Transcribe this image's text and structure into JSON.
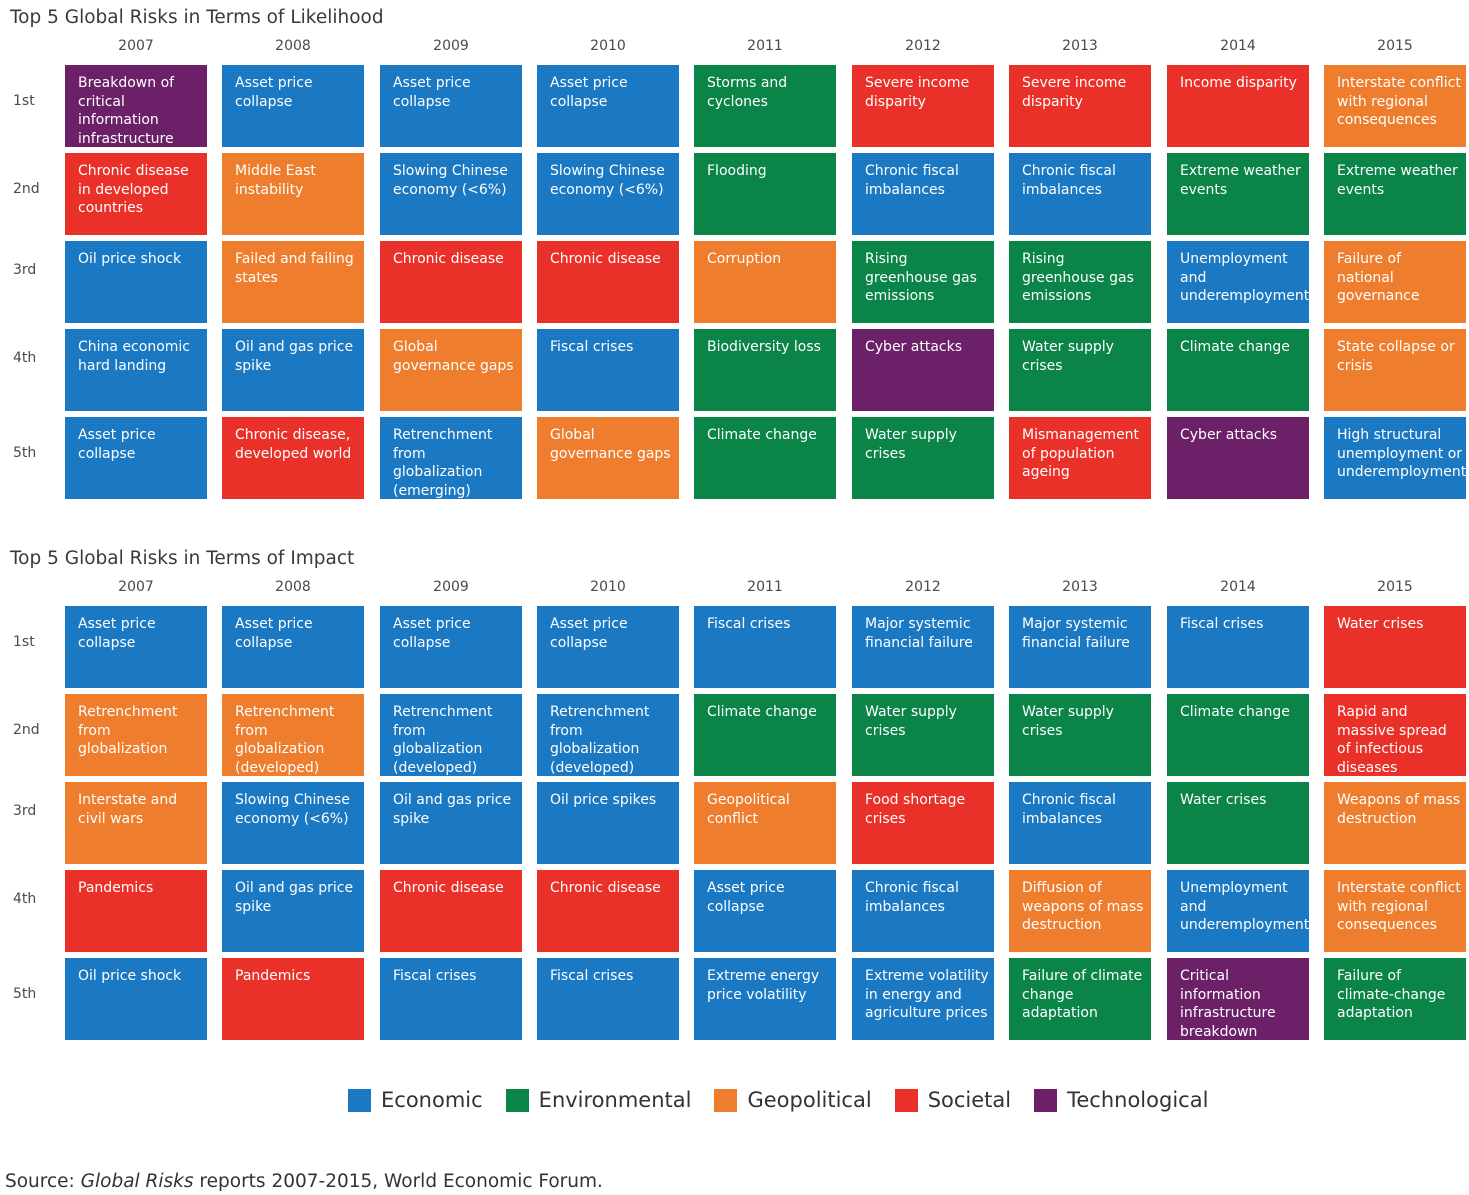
{
  "colors": {
    "Economic": "#1b79c4",
    "Environmental": "#0a8447",
    "Geopolitical": "#ee7d2e",
    "Societal": "#ea3129",
    "Technological": "#6c2068"
  },
  "years": [
    "2007",
    "2008",
    "2009",
    "2010",
    "2011",
    "2012",
    "2013",
    "2014",
    "2015"
  ],
  "ranks": [
    "1st",
    "2nd",
    "3rd",
    "4th",
    "5th"
  ],
  "panels": [
    {
      "title": "Top 5 Global Risks in Terms of Likelihood",
      "columns": [
        [
          {
            "text": "Breakdown of critical information infrastructure",
            "cat": "Technological"
          },
          {
            "text": "Chronic disease in developed countries",
            "cat": "Societal"
          },
          {
            "text": "Oil price shock",
            "cat": "Economic"
          },
          {
            "text": "China economic hard landing",
            "cat": "Economic"
          },
          {
            "text": "Asset price collapse",
            "cat": "Economic"
          }
        ],
        [
          {
            "text": "Asset price collapse",
            "cat": "Economic"
          },
          {
            "text": "Middle East instability",
            "cat": "Geopolitical"
          },
          {
            "text": "Failed and failing states",
            "cat": "Geopolitical"
          },
          {
            "text": "Oil and gas price spike",
            "cat": "Economic"
          },
          {
            "text": "Chronic disease, developed world",
            "cat": "Societal"
          }
        ],
        [
          {
            "text": "Asset price collapse",
            "cat": "Economic"
          },
          {
            "text": "Slowing Chinese economy (<6%)",
            "cat": "Economic"
          },
          {
            "text": "Chronic disease",
            "cat": "Societal"
          },
          {
            "text": "Global governance gaps",
            "cat": "Geopolitical"
          },
          {
            "text": "Retrenchment from globalization (emerging)",
            "cat": "Economic"
          }
        ],
        [
          {
            "text": "Asset price collapse",
            "cat": "Economic"
          },
          {
            "text": "Slowing Chinese economy (<6%)",
            "cat": "Economic"
          },
          {
            "text": "Chronic disease",
            "cat": "Societal"
          },
          {
            "text": "Fiscal crises",
            "cat": "Economic"
          },
          {
            "text": "Global governance gaps",
            "cat": "Geopolitical"
          }
        ],
        [
          {
            "text": "Storms and cyclones",
            "cat": "Environmental"
          },
          {
            "text": "Flooding",
            "cat": "Environmental"
          },
          {
            "text": "Corruption",
            "cat": "Geopolitical"
          },
          {
            "text": "Biodiversity loss",
            "cat": "Environmental"
          },
          {
            "text": "Climate change",
            "cat": "Environmental"
          }
        ],
        [
          {
            "text": "Severe income disparity",
            "cat": "Societal"
          },
          {
            "text": "Chronic fiscal imbalances",
            "cat": "Economic"
          },
          {
            "text": "Rising greenhouse gas emissions",
            "cat": "Environmental"
          },
          {
            "text": "Cyber attacks",
            "cat": "Technological"
          },
          {
            "text": "Water supply crises",
            "cat": "Environmental"
          }
        ],
        [
          {
            "text": "Severe income disparity",
            "cat": "Societal"
          },
          {
            "text": "Chronic fiscal imbalances",
            "cat": "Economic"
          },
          {
            "text": "Rising greenhouse gas emissions",
            "cat": "Environmental"
          },
          {
            "text": "Water supply crises",
            "cat": "Environmental"
          },
          {
            "text": "Mismanagement of population ageing",
            "cat": "Societal"
          }
        ],
        [
          {
            "text": "Income disparity",
            "cat": "Societal"
          },
          {
            "text": "Extreme weather events",
            "cat": "Environmental"
          },
          {
            "text": "Unemployment and underemployment",
            "cat": "Economic"
          },
          {
            "text": "Climate change",
            "cat": "Environmental"
          },
          {
            "text": "Cyber attacks",
            "cat": "Technological"
          }
        ],
        [
          {
            "text": "Interstate conflict with regional consequences",
            "cat": "Geopolitical"
          },
          {
            "text": "Extreme weather events",
            "cat": "Environmental"
          },
          {
            "text": "Failure of national governance",
            "cat": "Geopolitical"
          },
          {
            "text": "State collapse or crisis",
            "cat": "Geopolitical"
          },
          {
            "text": "High structural unemployment or underemployment",
            "cat": "Economic"
          }
        ]
      ]
    },
    {
      "title": "Top 5 Global Risks in Terms of Impact",
      "columns": [
        [
          {
            "text": "Asset price collapse",
            "cat": "Economic"
          },
          {
            "text": "Retrenchment from globalization",
            "cat": "Geopolitical"
          },
          {
            "text": "Interstate and civil wars",
            "cat": "Geopolitical"
          },
          {
            "text": "Pandemics",
            "cat": "Societal"
          },
          {
            "text": "Oil price shock",
            "cat": "Economic"
          }
        ],
        [
          {
            "text": "Asset price collapse",
            "cat": "Economic"
          },
          {
            "text": "Retrenchment from globalization (developed)",
            "cat": "Geopolitical"
          },
          {
            "text": "Slowing Chinese economy (<6%)",
            "cat": "Economic"
          },
          {
            "text": "Oil and gas price spike",
            "cat": "Economic"
          },
          {
            "text": "Pandemics",
            "cat": "Societal"
          }
        ],
        [
          {
            "text": "Asset price collapse",
            "cat": "Economic"
          },
          {
            "text": "Retrenchment from globalization (developed)",
            "cat": "Economic"
          },
          {
            "text": "Oil and gas price spike",
            "cat": "Economic"
          },
          {
            "text": "Chronic disease",
            "cat": "Societal"
          },
          {
            "text": "Fiscal crises",
            "cat": "Economic"
          }
        ],
        [
          {
            "text": "Asset price collapse",
            "cat": "Economic"
          },
          {
            "text": "Retrenchment from globalization (developed)",
            "cat": "Economic"
          },
          {
            "text": "Oil price spikes",
            "cat": "Economic"
          },
          {
            "text": "Chronic disease",
            "cat": "Societal"
          },
          {
            "text": "Fiscal crises",
            "cat": "Economic"
          }
        ],
        [
          {
            "text": "Fiscal crises",
            "cat": "Economic"
          },
          {
            "text": "Climate change",
            "cat": "Environmental"
          },
          {
            "text": "Geopolitical conflict",
            "cat": "Geopolitical"
          },
          {
            "text": "Asset price collapse",
            "cat": "Economic"
          },
          {
            "text": "Extreme energy price volatility",
            "cat": "Economic"
          }
        ],
        [
          {
            "text": "Major systemic financial failure",
            "cat": "Economic"
          },
          {
            "text": "Water supply crises",
            "cat": "Environmental"
          },
          {
            "text": "Food shortage crises",
            "cat": "Societal"
          },
          {
            "text": "Chronic fiscal imbalances",
            "cat": "Economic"
          },
          {
            "text": "Extreme volatility in energy and agriculture prices",
            "cat": "Economic"
          }
        ],
        [
          {
            "text": "Major systemic financial failure",
            "cat": "Economic"
          },
          {
            "text": "Water supply crises",
            "cat": "Environmental"
          },
          {
            "text": "Chronic fiscal imbalances",
            "cat": "Economic"
          },
          {
            "text": "Diffusion of weapons of mass destruction",
            "cat": "Geopolitical"
          },
          {
            "text": "Failure of climate change adaptation",
            "cat": "Environmental"
          }
        ],
        [
          {
            "text": "Fiscal crises",
            "cat": "Economic"
          },
          {
            "text": "Climate change",
            "cat": "Environmental"
          },
          {
            "text": "Water crises",
            "cat": "Environmental"
          },
          {
            "text": "Unemployment and underemployment",
            "cat": "Economic"
          },
          {
            "text": "Critical information infrastructure breakdown",
            "cat": "Technological"
          }
        ],
        [
          {
            "text": "Water crises",
            "cat": "Societal"
          },
          {
            "text": "Rapid and massive spread of infectious diseases",
            "cat": "Societal"
          },
          {
            "text": "Weapons of mass destruction",
            "cat": "Geopolitical"
          },
          {
            "text": "Interstate conflict with regional consequences",
            "cat": "Geopolitical"
          },
          {
            "text": "Failure of climate-change adaptation",
            "cat": "Environmental"
          }
        ]
      ]
    }
  ],
  "legend": [
    "Economic",
    "Environmental",
    "Geopolitical",
    "Societal",
    "Technological"
  ],
  "source": {
    "prefix": "Source: ",
    "italic": "Global Risks",
    "suffix": " reports 2007-2015, World Economic Forum."
  }
}
